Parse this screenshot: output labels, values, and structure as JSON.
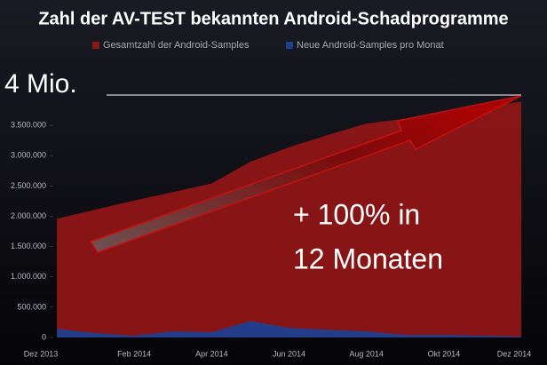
{
  "chart_data": {
    "type": "area",
    "title": "Zahl der AV-TEST bekannten Android-Schadprogramme",
    "categories": [
      "Dez 2013",
      null,
      "Feb 2014",
      null,
      "Apr 2014",
      null,
      "Jun 2014",
      null,
      "Aug 2014",
      null,
      "Okt 2014",
      null,
      "Dez 2014"
    ],
    "series": [
      {
        "name": "Gesamtzahl der Android-Samples",
        "color": "#8e1616",
        "values": [
          1960000,
          2110000,
          2260000,
          2400000,
          2540000,
          2900000,
          3140000,
          3340000,
          3530000,
          3610000,
          3710000,
          3800000,
          3890000
        ]
      },
      {
        "name": "Neue Android-Samples pro Monat",
        "color": "#1f3f8f",
        "values": [
          143000,
          71000,
          29000,
          100000,
          86000,
          271000,
          157000,
          129000,
          100000,
          43000,
          43000,
          29000,
          14000
        ]
      }
    ],
    "ylim": [
      0,
      4000000
    ],
    "yticks": [
      0,
      {
        "value": 500000,
        "label": "500.000"
      },
      {
        "value": 1000000,
        "label": "1.000.000"
      },
      {
        "value": 1500000,
        "label": "1.500.000"
      },
      {
        "value": 2000000,
        "label": "2.000.000"
      },
      {
        "value": 2500000,
        "label": "2.500.000"
      },
      {
        "value": 3000000,
        "label": "3.000.000"
      },
      {
        "value": 3500000,
        "label": "3.500.000"
      }
    ],
    "reference_line": {
      "value": 4000000,
      "label": "4 Mio."
    },
    "annotations": [
      "+ 100% in",
      "12 Monaten"
    ]
  }
}
